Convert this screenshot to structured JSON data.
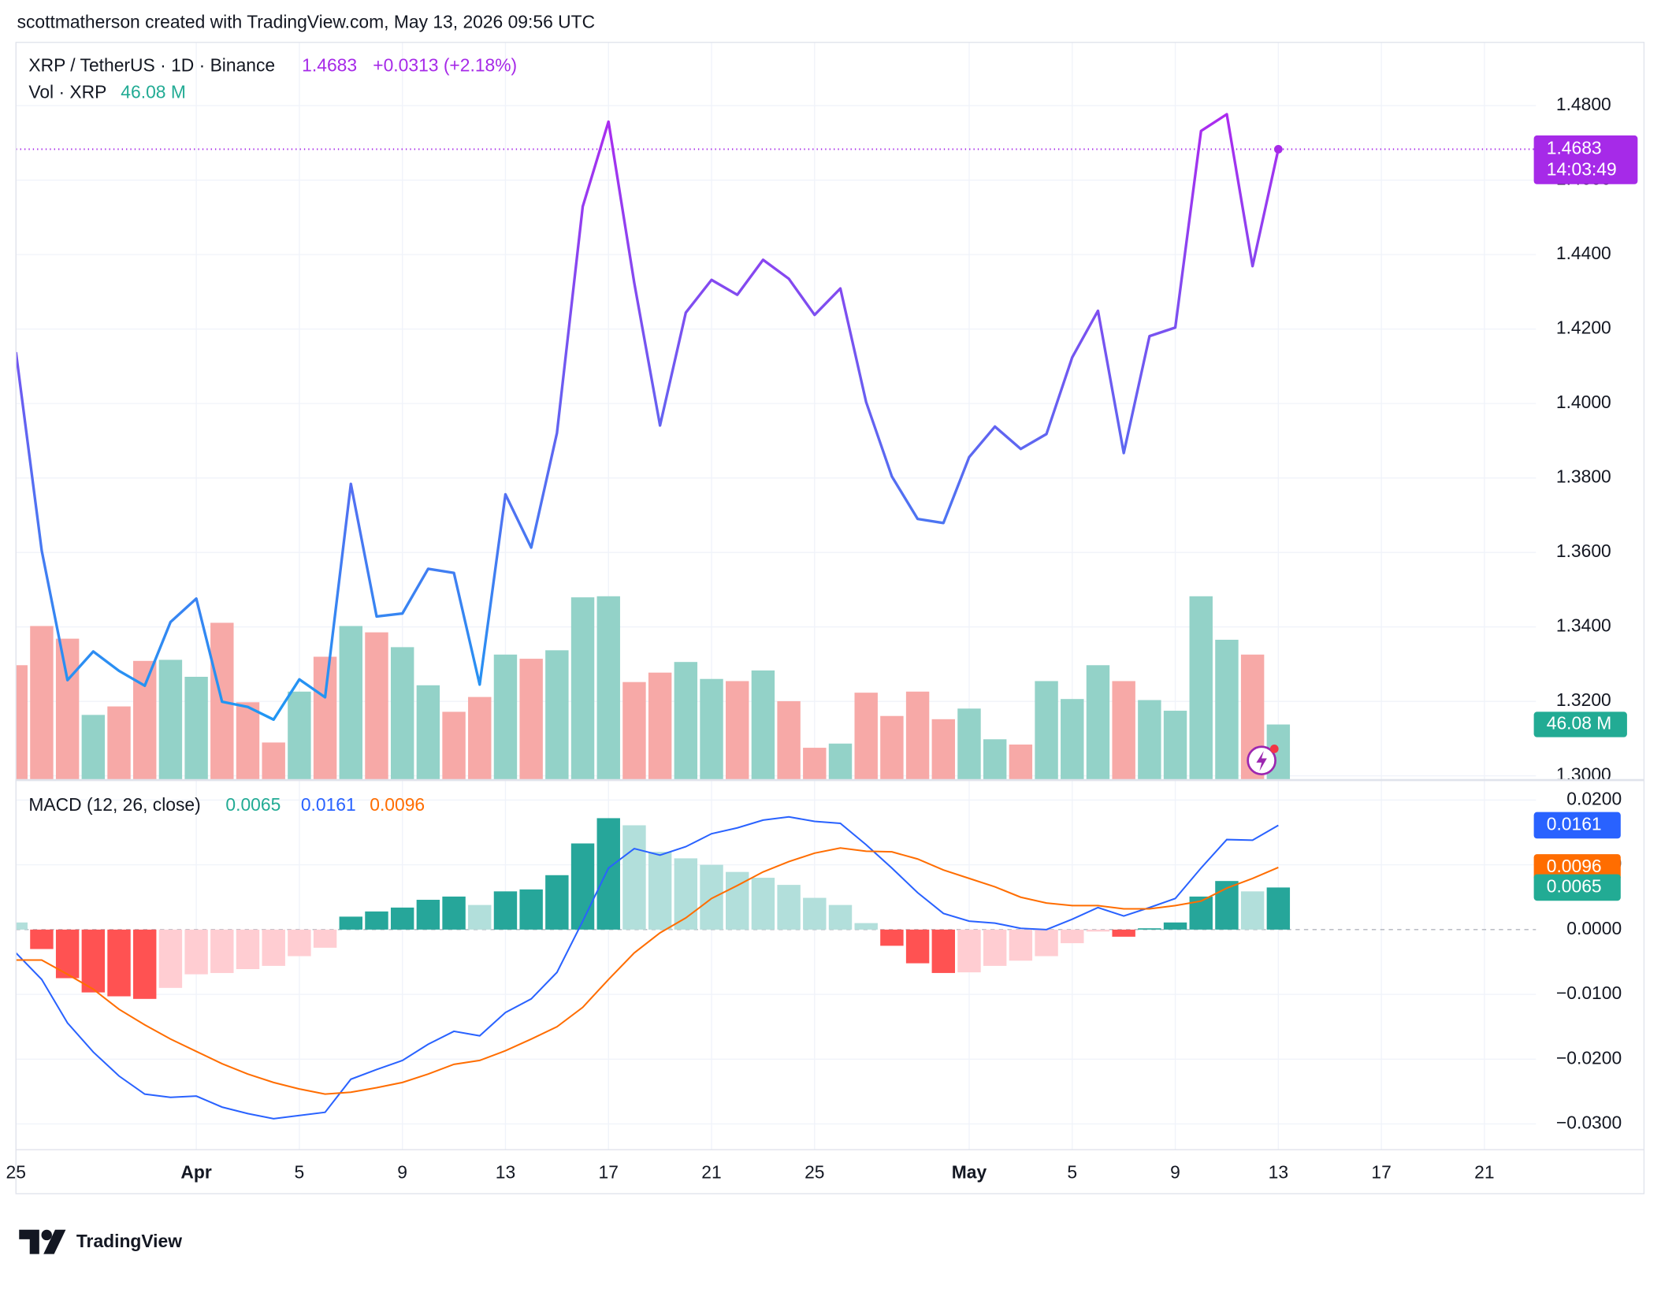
{
  "header": {
    "credit": "scottmatherson created with TradingView.com, May 13, 2026 09:56 UTC"
  },
  "footer": {
    "logo": "TradingView"
  },
  "chart_data": {
    "type": "line",
    "title": "XRP / TetherUS · 1D · Binance",
    "change": "+0.0313 (+2.18%)",
    "countdown": "14:03:49",
    "x": [
      "2026-03-25",
      "2026-03-26",
      "2026-03-27",
      "2026-03-28",
      "2026-03-29",
      "2026-03-30",
      "2026-03-31",
      "2026-04-01",
      "2026-04-02",
      "2026-04-03",
      "2026-04-04",
      "2026-04-05",
      "2026-04-06",
      "2026-04-07",
      "2026-04-08",
      "2026-04-09",
      "2026-04-10",
      "2026-04-11",
      "2026-04-12",
      "2026-04-13",
      "2026-04-14",
      "2026-04-15",
      "2026-04-16",
      "2026-04-17",
      "2026-04-18",
      "2026-04-19",
      "2026-04-20",
      "2026-04-21",
      "2026-04-22",
      "2026-04-23",
      "2026-04-24",
      "2026-04-25",
      "2026-04-26",
      "2026-04-27",
      "2026-04-28",
      "2026-04-29",
      "2026-04-30",
      "2026-05-01",
      "2026-05-02",
      "2026-05-03",
      "2026-05-04",
      "2026-05-05",
      "2026-05-06",
      "2026-05-07",
      "2026-05-08",
      "2026-05-09",
      "2026-05-10",
      "2026-05-11",
      "2026-05-12",
      "2026-05-13"
    ],
    "values": [
      1.4138,
      1.3605,
      1.3257,
      1.3334,
      1.3282,
      1.3242,
      1.3413,
      1.3476,
      1.3199,
      1.3185,
      1.3151,
      1.3259,
      1.3211,
      1.3784,
      1.3428,
      1.3436,
      1.3556,
      1.3545,
      1.3245,
      1.3756,
      1.3613,
      1.3921,
      1.4529,
      1.4757,
      1.4324,
      1.3941,
      1.4244,
      1.4332,
      1.4292,
      1.4386,
      1.4335,
      1.4238,
      1.4309,
      1.4004,
      1.3804,
      1.369,
      1.3679,
      1.3856,
      1.3938,
      1.3878,
      1.3918,
      1.4124,
      1.4249,
      1.3867,
      1.4181,
      1.4204,
      1.4732,
      1.4777,
      1.4369,
      1.4683
    ],
    "color_top": "#ab2bef",
    "color_bottom": "#2196f3",
    "last_color": "#a62ae8",
    "xlim": [
      "2026-03-25",
      "2026-05-23"
    ],
    "xticks": [
      {
        "value": "2026-03-25",
        "label": "25"
      },
      {
        "value": "2026-04-01",
        "label": "Apr"
      },
      {
        "value": "2026-04-05",
        "label": "5"
      },
      {
        "value": "2026-04-09",
        "label": "9"
      },
      {
        "value": "2026-04-13",
        "label": "13"
      },
      {
        "value": "2026-04-17",
        "label": "17"
      },
      {
        "value": "2026-04-21",
        "label": "21"
      },
      {
        "value": "2026-04-25",
        "label": "25"
      },
      {
        "value": "2026-05-01",
        "label": "May"
      },
      {
        "value": "2026-05-05",
        "label": "5"
      },
      {
        "value": "2026-05-09",
        "label": "9"
      },
      {
        "value": "2026-05-13",
        "label": "13"
      },
      {
        "value": "2026-05-17",
        "label": "17"
      },
      {
        "value": "2026-05-21",
        "label": "21"
      }
    ],
    "ylim": [
      1.299,
      1.497
    ],
    "yticks": [
      {
        "value": 1.3,
        "label": "1.3000"
      },
      {
        "value": 1.32,
        "label": "1.3200"
      },
      {
        "value": 1.34,
        "label": "1.3400"
      },
      {
        "value": 1.36,
        "label": "1.3600"
      },
      {
        "value": 1.38,
        "label": "1.3800"
      },
      {
        "value": 1.4,
        "label": "1.4000"
      },
      {
        "value": 1.42,
        "label": "1.4200"
      },
      {
        "value": 1.44,
        "label": "1.4400"
      },
      {
        "value": 1.46,
        "label": "1.4600"
      },
      {
        "value": 1.48,
        "label": "1.4800"
      }
    ],
    "grid": true,
    "volume": {
      "type": "bar",
      "title": "Vol · XRP",
      "legend_value": "46.08 M",
      "ylim": [
        0,
        617
      ],
      "up_color": "#93d2c8",
      "down_color": "#f7a9a7",
      "badge_color": "#22ab94",
      "values": [
        95.7,
        128.5,
        117.9,
        54.1,
        61.2,
        99.3,
        100.2,
        86.0,
        131.2,
        64.7,
        31.0,
        73.6,
        102.8,
        128.5,
        123.2,
        110.8,
        78.9,
        56.7,
        69.1,
        104.6,
        101.1,
        108.2,
        152.5,
        153.4,
        81.6,
        89.5,
        98.4,
        84.2,
        82.4,
        91.3,
        65.6,
        26.6,
        30.1,
        72.7,
        53.2,
        73.6,
        50.5,
        59.4,
        33.7,
        29.3,
        82.4,
        67.4,
        95.7,
        82.4,
        66.5,
        57.6,
        153.4,
        117.0,
        104.6,
        46.08
      ],
      "directions": [
        "down",
        "down",
        "down",
        "up",
        "down",
        "down",
        "up",
        "up",
        "down",
        "down",
        "down",
        "up",
        "down",
        "up",
        "down",
        "up",
        "up",
        "down",
        "down",
        "up",
        "down",
        "up",
        "up",
        "up",
        "down",
        "down",
        "up",
        "up",
        "down",
        "up",
        "down",
        "down",
        "up",
        "down",
        "down",
        "down",
        "down",
        "up",
        "up",
        "down",
        "up",
        "up",
        "up",
        "down",
        "up",
        "up",
        "up",
        "up",
        "down",
        "up"
      ]
    },
    "macd": {
      "type": "macd",
      "title": "MACD (12, 26, close)",
      "ylim": [
        -0.0339,
        0.023
      ],
      "yticks": [
        {
          "value": -0.03,
          "label": "−0.0300"
        },
        {
          "value": -0.02,
          "label": "−0.0200"
        },
        {
          "value": -0.01,
          "label": "−0.0100"
        },
        {
          "value": 0,
          "label": "0.0000"
        },
        {
          "value": 0.01,
          "label": "0.0100"
        },
        {
          "value": 0.02,
          "label": "0.0200"
        }
      ],
      "histogram": {
        "values": [
          0.0011,
          -0.003,
          -0.0075,
          -0.0097,
          -0.0103,
          -0.0107,
          -0.009,
          -0.0069,
          -0.0067,
          -0.0061,
          -0.0056,
          -0.0041,
          -0.0028,
          0.002,
          0.0028,
          0.0034,
          0.0046,
          0.0051,
          0.0038,
          0.0059,
          0.0062,
          0.0084,
          0.0133,
          0.0172,
          0.0161,
          0.012,
          0.011,
          0.01,
          0.0089,
          0.008,
          0.0069,
          0.0049,
          0.0038,
          0.001,
          -0.0025,
          -0.0052,
          -0.0067,
          -0.0066,
          -0.0056,
          -0.0048,
          -0.0041,
          -0.0021,
          -0.0003,
          -0.0011,
          0.0002,
          0.0011,
          0.0051,
          0.0075,
          0.0059,
          0.0065
        ],
        "colors": [
          "#b2dfdb",
          "#ff5252",
          "#ff5252",
          "#ff5252",
          "#ff5252",
          "#ff5252",
          "#ffcdd2",
          "#ffcdd2",
          "#ffcdd2",
          "#ffcdd2",
          "#ffcdd2",
          "#ffcdd2",
          "#ffcdd2",
          "#26a69a",
          "#26a69a",
          "#26a69a",
          "#26a69a",
          "#26a69a",
          "#b2dfdb",
          "#26a69a",
          "#26a69a",
          "#26a69a",
          "#26a69a",
          "#26a69a",
          "#b2dfdb",
          "#b2dfdb",
          "#b2dfdb",
          "#b2dfdb",
          "#b2dfdb",
          "#b2dfdb",
          "#b2dfdb",
          "#b2dfdb",
          "#b2dfdb",
          "#b2dfdb",
          "#ff5252",
          "#ff5252",
          "#ff5252",
          "#ffcdd2",
          "#ffcdd2",
          "#ffcdd2",
          "#ffcdd2",
          "#ffcdd2",
          "#ffcdd2",
          "#ff5252",
          "#26a69a",
          "#26a69a",
          "#26a69a",
          "#26a69a",
          "#b2dfdb",
          "#26a69a"
        ],
        "color": "#22ab94"
      },
      "series": [
        {
          "color": "#2962ff",
          "values": [
            -0.0036,
            -0.0077,
            -0.0144,
            -0.0189,
            -0.0226,
            -0.0254,
            -0.0259,
            -0.0257,
            -0.0274,
            -0.0284,
            -0.0292,
            -0.0287,
            -0.0282,
            -0.0231,
            -0.0216,
            -0.0202,
            -0.0177,
            -0.0157,
            -0.0164,
            -0.0128,
            -0.0107,
            -0.0066,
            0.0013,
            0.0095,
            0.0125,
            0.0115,
            0.0128,
            0.0148,
            0.0157,
            0.0169,
            0.0174,
            0.0167,
            0.0164,
            0.0131,
            0.0095,
            0.0057,
            0.0025,
            0.0013,
            0.001,
            0.0002,
            0,
            0.0016,
            0.0034,
            0.0021,
            0.0034,
            0.0048,
            0.0095,
            0.0139,
            0.0138,
            0.0161
          ]
        },
        {
          "color": "#ff6d00",
          "values": [
            -0.0047,
            -0.0047,
            -0.0069,
            -0.0092,
            -0.0123,
            -0.0147,
            -0.0169,
            -0.0188,
            -0.0207,
            -0.0223,
            -0.0236,
            -0.0246,
            -0.0254,
            -0.0251,
            -0.0244,
            -0.0236,
            -0.0223,
            -0.0208,
            -0.0202,
            -0.0187,
            -0.0169,
            -0.015,
            -0.012,
            -0.0077,
            -0.0036,
            -0.0005,
            0.0018,
            0.0048,
            0.0068,
            0.0089,
            0.0105,
            0.0118,
            0.0126,
            0.0121,
            0.012,
            0.0109,
            0.0092,
            0.0079,
            0.0066,
            0.005,
            0.0041,
            0.0037,
            0.0037,
            0.0032,
            0.0032,
            0.0037,
            0.0044,
            0.0064,
            0.0079,
            0.0096
          ]
        }
      ]
    }
  }
}
